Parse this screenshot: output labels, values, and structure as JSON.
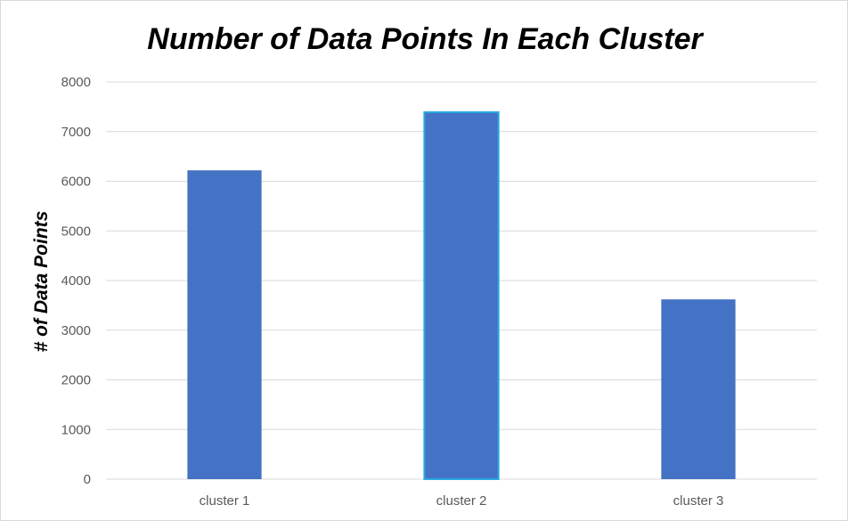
{
  "chart_data": {
    "type": "bar",
    "title": "Number of Data Points In Each Cluster",
    "xlabel": "",
    "ylabel": "# of Data Points",
    "categories": [
      "cluster 1",
      "cluster 2",
      "cluster 3"
    ],
    "values": [
      6220,
      7390,
      3620
    ],
    "ylim": [
      0,
      8000
    ],
    "yticks": [
      0,
      1000,
      2000,
      3000,
      4000,
      5000,
      6000,
      7000,
      8000
    ],
    "grid": "horizontal",
    "legend": "none",
    "colors": {
      "bar": "#4472c4",
      "bar_highlight_outline": "#29a8e0",
      "grid": "#d9d9d9",
      "tick_text": "#595959",
      "title_text": "#000000"
    }
  }
}
